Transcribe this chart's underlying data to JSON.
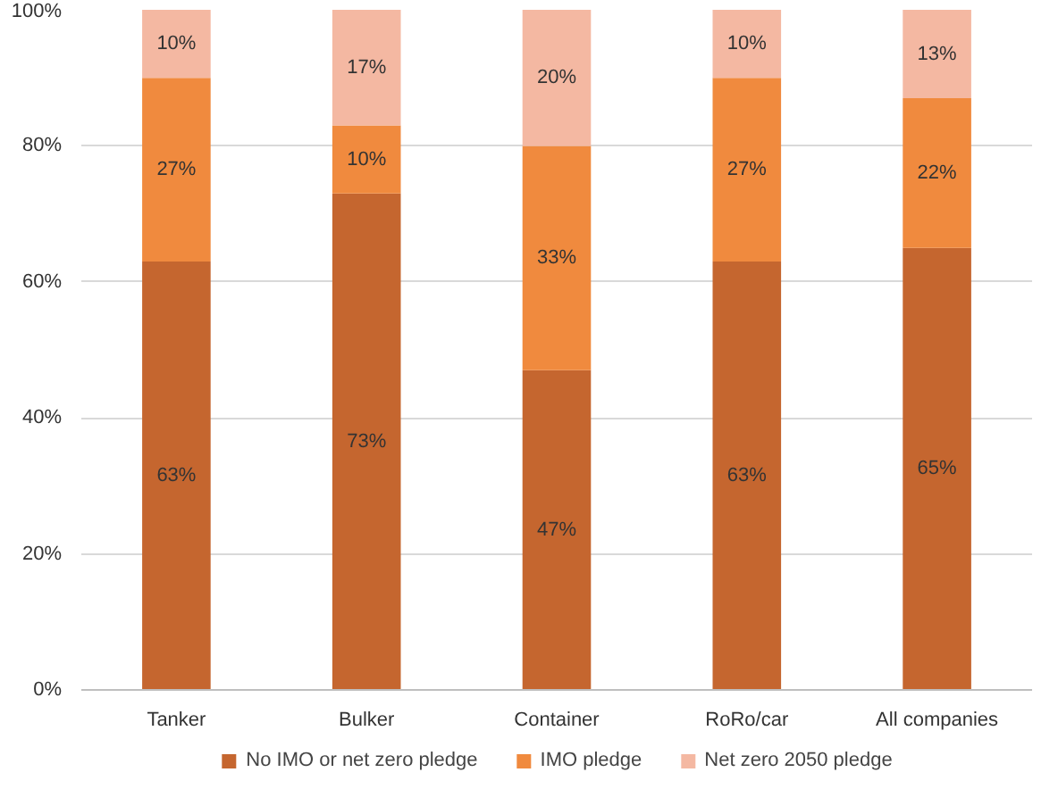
{
  "chart_data": {
    "type": "bar",
    "stacked": true,
    "categories": [
      "Tanker",
      "Bulker",
      "Container",
      "RoRo/car",
      "All companies"
    ],
    "series": [
      {
        "name": "No IMO or net zero pledge",
        "color": "#c5662f",
        "values": [
          63,
          73,
          47,
          63,
          65
        ],
        "value_labels": [
          "63%",
          "73%",
          "47%",
          "63%",
          "65%"
        ]
      },
      {
        "name": "IMO pledge",
        "color": "#f08a3e",
        "values": [
          27,
          10,
          33,
          27,
          22
        ],
        "value_labels": [
          "27%",
          "10%",
          "33%",
          "27%",
          "22%"
        ]
      },
      {
        "name": "Net zero 2050 pledge",
        "color": "#f4b8a2",
        "values": [
          10,
          17,
          20,
          10,
          13
        ],
        "value_labels": [
          "10%",
          "17%",
          "20%",
          "10%",
          "13%"
        ]
      }
    ],
    "ylim": [
      0,
      100
    ],
    "yticks": [
      {
        "value": 0,
        "label": "0%"
      },
      {
        "value": 20,
        "label": "20%"
      },
      {
        "value": 40,
        "label": "40%"
      },
      {
        "value": 60,
        "label": "60%"
      },
      {
        "value": 80,
        "label": "80%"
      },
      {
        "value": 100,
        "label": "100%"
      }
    ],
    "grid": "y",
    "legend": "bottom"
  }
}
